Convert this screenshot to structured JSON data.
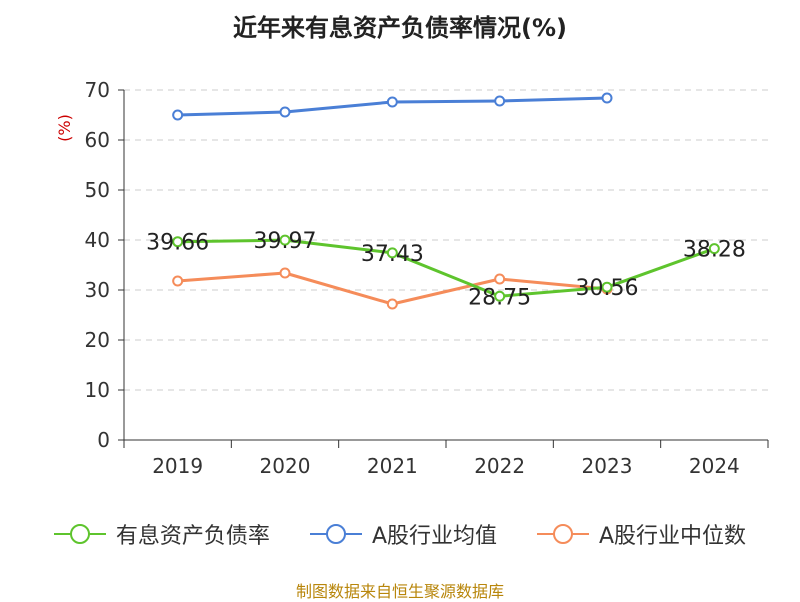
{
  "title": "近年来有息资产负债率情况(%)",
  "source": "制图数据来自恒生聚源数据库",
  "chart_data": {
    "type": "line",
    "categories": [
      "2019",
      "2020",
      "2021",
      "2022",
      "2023",
      "2024"
    ],
    "ylabel": "(%)",
    "ylim": [
      0,
      70
    ],
    "yticks": [
      0,
      10,
      20,
      30,
      40,
      50,
      60,
      70
    ],
    "grid": true,
    "legend_position": "bottom",
    "series": [
      {
        "name": "有息资产负债率",
        "color": "#5ec42d",
        "values": [
          39.66,
          39.97,
          37.43,
          28.75,
          30.56,
          38.28
        ],
        "labels": [
          "39.66",
          "39.97",
          "37.43",
          "28.75",
          "30.56",
          "38.28"
        ]
      },
      {
        "name": "A股行业均值",
        "color": "#4a7fd6",
        "values": [
          65.0,
          65.6,
          67.6,
          67.8,
          68.4,
          null
        ]
      },
      {
        "name": "A股行业中位数",
        "color": "#f58c5a",
        "values": [
          31.8,
          33.4,
          27.2,
          32.2,
          30.2,
          null
        ]
      }
    ]
  }
}
